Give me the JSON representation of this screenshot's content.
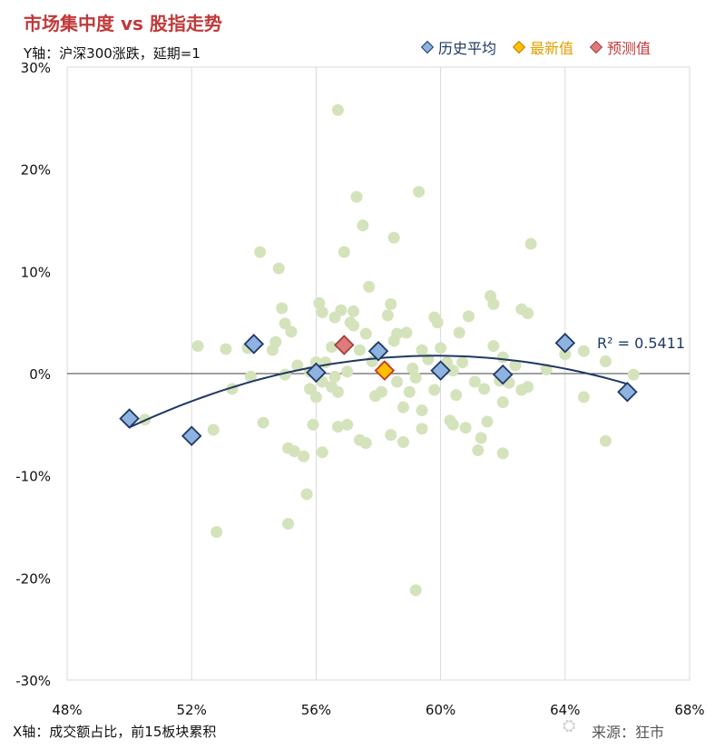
{
  "title": "市场集中度 vs 股指走势",
  "y_note": "Y轴：沪深300涨跌，延期=1",
  "x_note": "X轴：成交额占比，前15板块累积",
  "source": "来源：狂市",
  "watermark": "雪球",
  "colors": {
    "title": "#c0393b",
    "scatter": "#d4e3bb",
    "history": "#8fb3e0",
    "latest": "#ffc000",
    "forecast": "#e07b7b",
    "trend": "#1f3864",
    "grid": "#d9d9d9",
    "zero": "#404040"
  },
  "chart_data": {
    "type": "scatter",
    "xlim": [
      0.48,
      0.68
    ],
    "ylim": [
      -0.3,
      0.3
    ],
    "x_ticks": [
      0.48,
      0.52,
      0.56,
      0.6,
      0.64,
      0.68
    ],
    "x_tick_labels": [
      "48%",
      "52%",
      "56%",
      "60%",
      "64%",
      "68%"
    ],
    "y_ticks": [
      0.3,
      0.2,
      0.1,
      0.0,
      -0.1,
      -0.2,
      -0.3
    ],
    "y_tick_labels": [
      "30%",
      "20%",
      "10%",
      "0%",
      "-10%",
      "-20%",
      "-30%"
    ],
    "grid": "vertical",
    "legend_position": "top-right",
    "legend": [
      {
        "label": "历史平均",
        "color": "#8fb3e0"
      },
      {
        "label": "最新值",
        "color": "#ffc000"
      },
      {
        "label": "预测值",
        "color": "#e07b7b"
      }
    ],
    "r2_label": "R² = 0.5411",
    "scatter": [
      [
        0.505,
        -0.045
      ],
      [
        0.522,
        0.027
      ],
      [
        0.527,
        -0.055
      ],
      [
        0.528,
        -0.155
      ],
      [
        0.531,
        0.024
      ],
      [
        0.533,
        -0.015
      ],
      [
        0.538,
        0.025
      ],
      [
        0.539,
        -0.003
      ],
      [
        0.542,
        0.119
      ],
      [
        0.543,
        -0.048
      ],
      [
        0.546,
        0.023
      ],
      [
        0.547,
        0.031
      ],
      [
        0.548,
        0.103
      ],
      [
        0.549,
        0.064
      ],
      [
        0.55,
        0.049
      ],
      [
        0.55,
        -0.001
      ],
      [
        0.551,
        -0.073
      ],
      [
        0.551,
        -0.147
      ],
      [
        0.552,
        0.041
      ],
      [
        0.553,
        -0.076
      ],
      [
        0.554,
        0.008
      ],
      [
        0.556,
        -0.081
      ],
      [
        0.557,
        -0.118
      ],
      [
        0.558,
        0.002
      ],
      [
        0.558,
        -0.015
      ],
      [
        0.559,
        -0.05
      ],
      [
        0.56,
        0.011
      ],
      [
        0.56,
        -0.023
      ],
      [
        0.561,
        0.069
      ],
      [
        0.562,
        0.06
      ],
      [
        0.562,
        -0.008
      ],
      [
        0.562,
        -0.077
      ],
      [
        0.563,
        0.011
      ],
      [
        0.565,
        0.026
      ],
      [
        0.565,
        -0.013
      ],
      [
        0.566,
        0.055
      ],
      [
        0.566,
        -0.003
      ],
      [
        0.567,
        0.258
      ],
      [
        0.567,
        -0.052
      ],
      [
        0.567,
        -0.018
      ],
      [
        0.568,
        0.062
      ],
      [
        0.569,
        0.119
      ],
      [
        0.57,
        0.002
      ],
      [
        0.57,
        -0.05
      ],
      [
        0.571,
        0.05
      ],
      [
        0.572,
        0.061
      ],
      [
        0.572,
        0.047
      ],
      [
        0.573,
        0.173
      ],
      [
        0.574,
        -0.065
      ],
      [
        0.574,
        0.023
      ],
      [
        0.575,
        0.145
      ],
      [
        0.576,
        0.039
      ],
      [
        0.576,
        -0.068
      ],
      [
        0.577,
        0.085
      ],
      [
        0.578,
        0.012
      ],
      [
        0.579,
        -0.022
      ],
      [
        0.58,
        0.025
      ],
      [
        0.581,
        -0.018
      ],
      [
        0.582,
        0.007
      ],
      [
        0.583,
        0.057
      ],
      [
        0.584,
        -0.06
      ],
      [
        0.584,
        0.068
      ],
      [
        0.585,
        0.133
      ],
      [
        0.585,
        0.032
      ],
      [
        0.586,
        -0.008
      ],
      [
        0.586,
        0.039
      ],
      [
        0.588,
        -0.067
      ],
      [
        0.588,
        -0.033
      ],
      [
        0.589,
        0.04
      ],
      [
        0.59,
        -0.018
      ],
      [
        0.591,
        0.005
      ],
      [
        0.592,
        -0.004
      ],
      [
        0.592,
        -0.212
      ],
      [
        0.593,
        0.178
      ],
      [
        0.594,
        -0.036
      ],
      [
        0.594,
        0.023
      ],
      [
        0.594,
        -0.054
      ],
      [
        0.596,
        0.014
      ],
      [
        0.598,
        -0.016
      ],
      [
        0.598,
        0.055
      ],
      [
        0.599,
        0.05
      ],
      [
        0.6,
        0.025
      ],
      [
        0.602,
        0.011
      ],
      [
        0.603,
        -0.046
      ],
      [
        0.604,
        -0.05
      ],
      [
        0.604,
        0.003
      ],
      [
        0.605,
        -0.021
      ],
      [
        0.606,
        0.04
      ],
      [
        0.607,
        0.011
      ],
      [
        0.608,
        -0.053
      ],
      [
        0.609,
        0.056
      ],
      [
        0.611,
        -0.008
      ],
      [
        0.612,
        -0.075
      ],
      [
        0.613,
        -0.063
      ],
      [
        0.614,
        -0.015
      ],
      [
        0.615,
        -0.047
      ],
      [
        0.616,
        0.076
      ],
      [
        0.617,
        0.068
      ],
      [
        0.617,
        0.027
      ],
      [
        0.619,
        -0.007
      ],
      [
        0.62,
        -0.078
      ],
      [
        0.62,
        -0.028
      ],
      [
        0.62,
        0.016
      ],
      [
        0.621,
        -0.007
      ],
      [
        0.622,
        -0.009
      ],
      [
        0.624,
        0.008
      ],
      [
        0.626,
        0.063
      ],
      [
        0.626,
        -0.016
      ],
      [
        0.628,
        0.059
      ],
      [
        0.628,
        -0.013
      ],
      [
        0.629,
        0.127
      ],
      [
        0.634,
        0.004
      ],
      [
        0.64,
        0.019
      ],
      [
        0.646,
        -0.023
      ],
      [
        0.646,
        0.022
      ],
      [
        0.653,
        -0.066
      ],
      [
        0.653,
        0.012
      ],
      [
        0.662,
        -0.001
      ]
    ],
    "history_average": [
      [
        0.5,
        -0.044
      ],
      [
        0.52,
        -0.061
      ],
      [
        0.54,
        0.029
      ],
      [
        0.56,
        0.001
      ],
      [
        0.58,
        0.022
      ],
      [
        0.6,
        0.003
      ],
      [
        0.62,
        -0.001
      ],
      [
        0.64,
        0.03
      ],
      [
        0.66,
        -0.018
      ]
    ],
    "latest": [
      [
        0.582,
        0.003
      ]
    ],
    "forecast": [
      [
        0.569,
        0.028
      ]
    ],
    "trendline_x": [
      0.5,
      0.66
    ]
  }
}
